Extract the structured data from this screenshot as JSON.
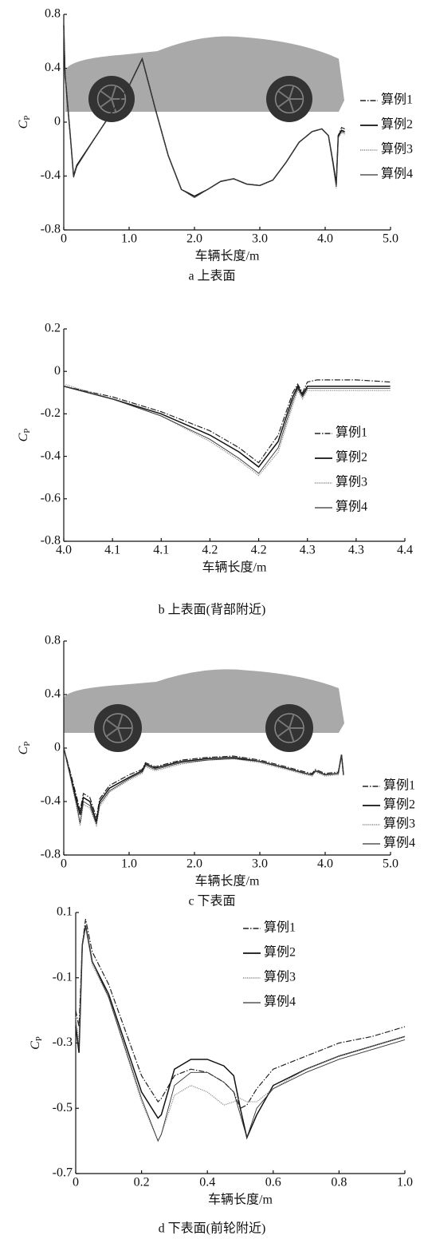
{
  "chart_data": [
    {
      "type": "line",
      "caption": "a 上表面",
      "xlabel": "车辆长度/m",
      "ylabel": "C",
      "ylabel_sub": "P",
      "xlim": [
        0,
        5
      ],
      "xticks": [
        0,
        {
          "value": 1,
          "label": "1.0"
        },
        {
          "value": 2,
          "label": "2.0"
        },
        {
          "value": 3,
          "label": "3.0"
        },
        {
          "value": 4,
          "label": "4.0"
        },
        {
          "value": 5,
          "label": "5.0"
        }
      ],
      "ylim": [
        -0.8,
        0.8
      ],
      "yticks": [
        -0.8,
        -0.4,
        0,
        0.4,
        0.8
      ],
      "legend": "right",
      "x": [
        0,
        0.02,
        0.1,
        0.15,
        0.2,
        0.5,
        0.8,
        1.0,
        1.15,
        1.2,
        1.4,
        1.6,
        1.8,
        2.0,
        2.2,
        2.4,
        2.6,
        2.8,
        3.0,
        3.2,
        3.4,
        3.6,
        3.8,
        3.95,
        4.05,
        4.12,
        4.17,
        4.2,
        4.25,
        4.3
      ],
      "series": [
        {
          "name": "算例1",
          "color": "#222222",
          "style": "dashdot",
          "values": [
            0.72,
            0.35,
            -0.1,
            -0.4,
            -0.32,
            -0.1,
            0.12,
            0.27,
            0.42,
            0.47,
            0.1,
            -0.25,
            -0.5,
            -0.55,
            -0.5,
            -0.44,
            -0.42,
            -0.46,
            -0.47,
            -0.43,
            -0.3,
            -0.15,
            -0.07,
            -0.05,
            -0.1,
            -0.3,
            -0.45,
            -0.1,
            -0.04,
            -0.05
          ]
        },
        {
          "name": "算例2",
          "color": "#111111",
          "style": "solid",
          "values": [
            0.72,
            0.35,
            -0.1,
            -0.4,
            -0.32,
            -0.1,
            0.12,
            0.27,
            0.42,
            0.47,
            0.1,
            -0.25,
            -0.5,
            -0.55,
            -0.5,
            -0.44,
            -0.42,
            -0.46,
            -0.47,
            -0.43,
            -0.3,
            -0.15,
            -0.07,
            -0.05,
            -0.1,
            -0.3,
            -0.46,
            -0.1,
            -0.06,
            -0.07
          ]
        },
        {
          "name": "算例3",
          "color": "#888888",
          "style": "dotted",
          "values": [
            0.72,
            0.35,
            -0.1,
            -0.41,
            -0.33,
            -0.1,
            0.12,
            0.27,
            0.42,
            0.47,
            0.1,
            -0.25,
            -0.5,
            -0.56,
            -0.5,
            -0.44,
            -0.42,
            -0.46,
            -0.47,
            -0.43,
            -0.3,
            -0.15,
            -0.07,
            -0.05,
            -0.1,
            -0.32,
            -0.49,
            -0.12,
            -0.08,
            -0.09
          ]
        },
        {
          "name": "算例4",
          "color": "#333333",
          "style": "thin",
          "values": [
            0.72,
            0.35,
            -0.1,
            -0.41,
            -0.33,
            -0.1,
            0.12,
            0.27,
            0.42,
            0.47,
            0.1,
            -0.25,
            -0.5,
            -0.56,
            -0.5,
            -0.44,
            -0.42,
            -0.46,
            -0.47,
            -0.43,
            -0.3,
            -0.15,
            -0.07,
            -0.05,
            -0.1,
            -0.31,
            -0.48,
            -0.11,
            -0.07,
            -0.08
          ]
        }
      ]
    },
    {
      "type": "line",
      "caption": "b 上表面(背部附近)",
      "xlabel": "车辆长度/m",
      "ylabel": "C",
      "ylabel_sub": "P",
      "xlim": [
        4.0,
        4.35
      ],
      "xticks": [
        {
          "value": 4.0,
          "label": "4.0"
        },
        {
          "value": 4.05,
          "label": "4.1"
        },
        {
          "value": 4.1,
          "label": "4.1"
        },
        {
          "value": 4.15,
          "label": "4.2"
        },
        {
          "value": 4.2,
          "label": "4.2"
        },
        {
          "value": 4.25,
          "label": "4.3"
        },
        {
          "value": 4.3,
          "label": "4.3"
        },
        {
          "value": 4.35,
          "label": "4.4"
        }
      ],
      "ylim": [
        -0.8,
        0.2
      ],
      "yticks": [
        -0.8,
        -0.6,
        -0.4,
        -0.2,
        0,
        0.2
      ],
      "legend": "center right",
      "x": [
        4.0,
        4.05,
        4.1,
        4.15,
        4.18,
        4.2,
        4.22,
        4.235,
        4.24,
        4.245,
        4.25,
        4.26,
        4.3,
        4.335
      ],
      "series": [
        {
          "name": "算例1",
          "color": "#222222",
          "style": "dashdot",
          "values": [
            -0.07,
            -0.12,
            -0.19,
            -0.28,
            -0.36,
            -0.43,
            -0.3,
            -0.1,
            -0.06,
            -0.1,
            -0.05,
            -0.04,
            -0.04,
            -0.05
          ]
        },
        {
          "name": "算例2",
          "color": "#111111",
          "style": "solid",
          "values": [
            -0.07,
            -0.13,
            -0.2,
            -0.3,
            -0.38,
            -0.45,
            -0.33,
            -0.12,
            -0.07,
            -0.11,
            -0.07,
            -0.07,
            -0.07,
            -0.07
          ]
        },
        {
          "name": "算例3",
          "color": "#888888",
          "style": "dotted",
          "values": [
            -0.06,
            -0.13,
            -0.21,
            -0.33,
            -0.42,
            -0.49,
            -0.38,
            -0.16,
            -0.09,
            -0.13,
            -0.09,
            -0.09,
            -0.09,
            -0.09
          ]
        },
        {
          "name": "算例4",
          "color": "#333333",
          "style": "thin",
          "values": [
            -0.07,
            -0.13,
            -0.21,
            -0.32,
            -0.41,
            -0.48,
            -0.36,
            -0.14,
            -0.08,
            -0.12,
            -0.08,
            -0.08,
            -0.08,
            -0.08
          ]
        }
      ]
    },
    {
      "type": "line",
      "caption": "c 下表面",
      "xlabel": "车辆长度/m",
      "ylabel": "C",
      "ylabel_sub": "P",
      "xlim": [
        0,
        5
      ],
      "xticks": [
        0,
        {
          "value": 1,
          "label": "1.0"
        },
        {
          "value": 2,
          "label": "2.0"
        },
        {
          "value": 3,
          "label": "3.0"
        },
        {
          "value": 4,
          "label": "4.0"
        },
        {
          "value": 5,
          "label": "5.0"
        }
      ],
      "ylim": [
        -0.8,
        0.8
      ],
      "yticks": [
        -0.8,
        -0.4,
        0,
        0.4,
        0.8
      ],
      "legend": "right",
      "x": [
        0,
        0.1,
        0.2,
        0.25,
        0.3,
        0.4,
        0.5,
        0.55,
        0.7,
        1.0,
        1.2,
        1.25,
        1.4,
        1.8,
        2.2,
        2.6,
        3.0,
        3.4,
        3.7,
        3.8,
        3.85,
        4.0,
        4.2,
        4.25,
        4.28
      ],
      "series": [
        {
          "name": "算例1",
          "color": "#222222",
          "style": "dashdot",
          "values": [
            0,
            -0.18,
            -0.37,
            -0.47,
            -0.34,
            -0.37,
            -0.52,
            -0.38,
            -0.28,
            -0.2,
            -0.16,
            -0.11,
            -0.14,
            -0.09,
            -0.07,
            -0.06,
            -0.09,
            -0.14,
            -0.18,
            -0.19,
            -0.16,
            -0.19,
            -0.18,
            -0.05,
            -0.2
          ]
        },
        {
          "name": "算例2",
          "color": "#111111",
          "style": "solid",
          "values": [
            0,
            -0.2,
            -0.4,
            -0.5,
            -0.37,
            -0.4,
            -0.55,
            -0.4,
            -0.3,
            -0.22,
            -0.17,
            -0.12,
            -0.15,
            -0.1,
            -0.08,
            -0.07,
            -0.1,
            -0.15,
            -0.19,
            -0.2,
            -0.17,
            -0.2,
            -0.19,
            -0.05,
            -0.2
          ]
        },
        {
          "name": "算例3",
          "color": "#888888",
          "style": "dotted",
          "values": [
            0,
            -0.22,
            -0.45,
            -0.58,
            -0.42,
            -0.45,
            -0.58,
            -0.44,
            -0.33,
            -0.24,
            -0.19,
            -0.14,
            -0.17,
            -0.12,
            -0.09,
            -0.08,
            -0.11,
            -0.16,
            -0.2,
            -0.21,
            -0.18,
            -0.21,
            -0.2,
            -0.06,
            -0.21
          ]
        },
        {
          "name": "算例4",
          "color": "#333333",
          "style": "thin",
          "values": [
            0,
            -0.21,
            -0.43,
            -0.56,
            -0.4,
            -0.43,
            -0.57,
            -0.42,
            -0.32,
            -0.23,
            -0.18,
            -0.13,
            -0.16,
            -0.11,
            -0.09,
            -0.08,
            -0.1,
            -0.15,
            -0.19,
            -0.2,
            -0.17,
            -0.2,
            -0.19,
            -0.05,
            -0.2
          ]
        }
      ]
    },
    {
      "type": "line",
      "caption": "d 下表面(前轮附近)",
      "xlabel": "车辆长度/m",
      "ylabel": "C",
      "ylabel_sub": "P",
      "xlim": [
        0,
        1
      ],
      "xticks": [
        0,
        0.2,
        0.4,
        0.6,
        0.8,
        {
          "value": 1,
          "label": "1.0"
        }
      ],
      "ylim": [
        -0.7,
        0.1
      ],
      "yticks": [
        -0.7,
        -0.5,
        -0.3,
        -0.1,
        0.1
      ],
      "legend": "upper center",
      "x": [
        0,
        0.01,
        0.02,
        0.03,
        0.05,
        0.1,
        0.2,
        0.25,
        0.26,
        0.3,
        0.35,
        0.4,
        0.45,
        0.48,
        0.5,
        0.52,
        0.55,
        0.6,
        0.7,
        0.8,
        0.9,
        1.0
      ],
      "series": [
        {
          "name": "算例1",
          "color": "#222222",
          "style": "dashdot",
          "values": [
            -0.2,
            -0.25,
            0.0,
            0.08,
            -0.02,
            -0.12,
            -0.4,
            -0.48,
            -0.47,
            -0.4,
            -0.38,
            -0.39,
            -0.42,
            -0.45,
            -0.5,
            -0.49,
            -0.44,
            -0.38,
            -0.34,
            -0.3,
            -0.28,
            -0.25
          ]
        },
        {
          "name": "算例2",
          "color": "#111111",
          "style": "solid",
          "values": [
            -0.25,
            -0.33,
            0.0,
            0.06,
            -0.05,
            -0.15,
            -0.45,
            -0.53,
            -0.52,
            -0.38,
            -0.35,
            -0.35,
            -0.37,
            -0.4,
            -0.5,
            -0.59,
            -0.52,
            -0.43,
            -0.38,
            -0.34,
            -0.31,
            -0.28
          ]
        },
        {
          "name": "算例3",
          "color": "#888888",
          "style": "dotted",
          "values": [
            -0.22,
            -0.3,
            0.0,
            0.06,
            -0.06,
            -0.16,
            -0.48,
            -0.6,
            -0.58,
            -0.46,
            -0.43,
            -0.45,
            -0.49,
            -0.48,
            -0.47,
            -0.48,
            -0.48,
            -0.44,
            -0.38,
            -0.34,
            -0.31,
            -0.28
          ]
        },
        {
          "name": "算例4",
          "color": "#333333",
          "style": "thin",
          "values": [
            -0.24,
            -0.32,
            0.0,
            0.06,
            -0.05,
            -0.16,
            -0.47,
            -0.6,
            -0.58,
            -0.43,
            -0.39,
            -0.39,
            -0.42,
            -0.45,
            -0.52,
            -0.59,
            -0.5,
            -0.44,
            -0.39,
            -0.35,
            -0.32,
            -0.29
          ]
        }
      ]
    }
  ]
}
